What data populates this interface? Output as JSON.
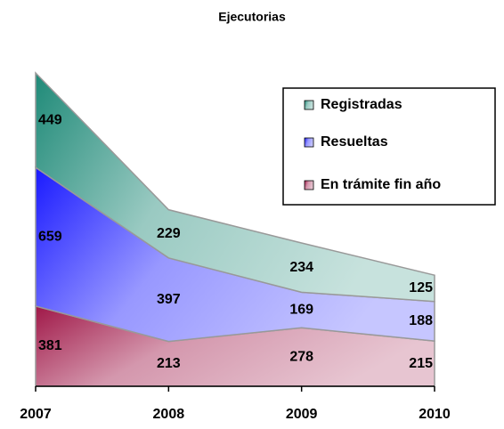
{
  "chart_data": {
    "type": "stacked_area",
    "title": "Ejecutorias",
    "categories": [
      "2007",
      "2008",
      "2009",
      "2010"
    ],
    "series": [
      {
        "name": "Registradas",
        "color": "#1f8a78",
        "values": [
          449,
          229,
          234,
          125
        ]
      },
      {
        "name": "Resueltas",
        "color": "#1a1aff",
        "values": [
          659,
          397,
          169,
          188
        ]
      },
      {
        "name": "En trámite fin año",
        "color": "#a01848",
        "values": [
          381,
          213,
          278,
          215
        ]
      }
    ],
    "legend": "upper right"
  }
}
